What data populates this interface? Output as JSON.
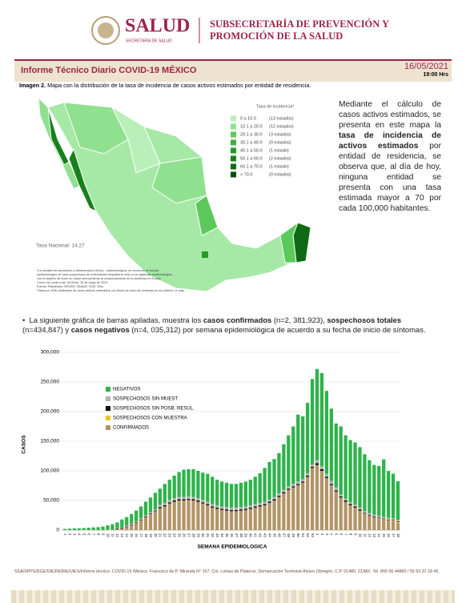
{
  "header": {
    "brand": "SALUD",
    "brand_sub": "SECRETARÍA DE SALUD",
    "title_1": "SUBSECRETARÍA DE PREVENCIÓN Y",
    "title_2": "PROMOCIÓN DE LA SALUD"
  },
  "report": {
    "title": "Informe Técnico Diario COVID-19 MÉXICO",
    "date": "16/05/2021",
    "time": "19:00 Hrs"
  },
  "map": {
    "caption_label": "Imagen 2.",
    "caption": "Mapa con la distribución de la tasa de incidencia de casos activos estimados por entidad de residencia.",
    "legend_title": "Tasa de incidencia*",
    "legend": [
      {
        "range": "0  a  10.0",
        "count": "(13 estados)",
        "color": "#b9f0b9"
      },
      {
        "range": "10.1  a  20.0",
        "count": "(12 estados)",
        "color": "#8fe08f"
      },
      {
        "range": "20.1  a  30.0",
        "count": "(3 estados)",
        "color": "#5cc95c"
      },
      {
        "range": "30.1  a  40.0",
        "count": "(0 estados)",
        "color": "#3fb03f"
      },
      {
        "range": "40.1  a  50.0",
        "count": "(1 estado)",
        "color": "#259a25"
      },
      {
        "range": "50.1  a  60.0",
        "count": "(2 estados)",
        "color": "#17801c"
      },
      {
        "range": "60.1  a  70.0",
        "count": "(1 estado)",
        "color": "#0e6a14"
      },
      {
        "range": "> 70.0",
        "count": "(0 estados)",
        "color": "#064d0b"
      }
    ],
    "national": "Tasa Nacional: 14.27",
    "notes": [
      "*La variable de asociación y dictaminación clínica - epidemiológica, se incorporó al estudio",
      "epidemiológico de caso sospechoso de enfermedad respiratoria viral y a la vigilancia epidemiológica",
      "con el objetivo de tener un mejor acercamiento al comportamiento de la epidemia en el país.",
      "Cierre con corte a las 16:00hrs, 16 de mayo de 2021",
      "Fuente: Plataforma SISVER, SINAVE, DGE, SSa.",
      "*Tasa por 100k habitantes de casos activos estimados; por fecha de inicio de síntomas en los últimos 14 días."
    ],
    "text": [
      "Mediante el cálculo de casos activos estimados, se presenta en este mapa la ",
      "tasa de incidencia de activos estimados",
      " por entidad de residencia, se observa que, al día de hoy, ninguna entidad se presenta con una tasa estimada mayor a 70 por cada 100,000 habitantes."
    ]
  },
  "bullet": [
    "La siguiente gráfica de barras apiladas, muestra los ",
    "casos confirmados",
    " (n=2, 381,923), ",
    "sospechosos totales",
    " (n=434,847) y ",
    "casos negativos",
    " (n=4, 035,312) por semana epidemiológica de acuerdo a su fecha de inicio de síntomas."
  ],
  "chart_data": {
    "type": "bar",
    "stacked": true,
    "ylabel": "CASOS",
    "xlabel": "SEMANA EPIDEMIOLOGICA",
    "ylim": [
      0,
      300000
    ],
    "yticks": [
      0,
      {
        "value": 50000,
        "label": "50,000"
      },
      {
        "value": 100000,
        "label": "100,000"
      },
      {
        "value": 150000,
        "label": "150,000"
      },
      {
        "value": 200000,
        "label": "200,000"
      },
      {
        "value": 250000,
        "label": "250,000"
      },
      {
        "value": 300000,
        "label": "300,000"
      }
    ],
    "grid": true,
    "categories": [
      "1",
      "2",
      "3",
      "4",
      "5",
      "6",
      "7",
      "8",
      "9",
      "10",
      "11",
      "12",
      "13",
      "14",
      "15",
      "16",
      "17",
      "18",
      "19",
      "20",
      "21",
      "22",
      "23",
      "24",
      "25",
      "26",
      "27",
      "28",
      "29",
      "30",
      "31",
      "32",
      "33",
      "34",
      "35",
      "36",
      "37",
      "38",
      "39",
      "40",
      "41",
      "42",
      "43",
      "44",
      "45",
      "46",
      "47",
      "48",
      "49",
      "50",
      "51",
      "52",
      "53",
      "1",
      "2",
      "3",
      "4",
      "5",
      "6",
      "7",
      "8",
      "9",
      "10",
      "11",
      "12",
      "13",
      "14",
      "15",
      "16",
      "17",
      "18"
    ],
    "series": [
      {
        "name": "CONFIRMADOS",
        "color": "#b39466",
        "values": [
          0,
          0,
          0,
          0,
          0,
          0,
          0,
          0,
          0,
          50,
          300,
          1500,
          3000,
          5000,
          8000,
          12000,
          17000,
          22000,
          27000,
          32000,
          37000,
          40000,
          45000,
          48000,
          50000,
          50000,
          51000,
          50000,
          48000,
          45000,
          42000,
          38000,
          36000,
          34000,
          33000,
          32000,
          32000,
          33000,
          34000,
          36000,
          38000,
          40000,
          42000,
          46000,
          50000,
          56000,
          62000,
          68000,
          72000,
          76000,
          80000,
          90000,
          105000,
          110000,
          100000,
          88000,
          76000,
          65000,
          55000,
          48000,
          42000,
          38000,
          33000,
          28000,
          25000,
          22000,
          20000,
          18000,
          16000,
          15000,
          12000
        ]
      },
      {
        "name": "SOSPECHOSOS CON MUESTRA",
        "color": "#f2c318",
        "values": [
          0,
          0,
          0,
          0,
          0,
          0,
          0,
          0,
          0,
          0,
          0,
          0,
          0,
          0,
          0,
          0,
          0,
          0,
          0,
          0,
          0,
          0,
          0,
          0,
          0,
          0,
          0,
          0,
          0,
          0,
          0,
          0,
          0,
          0,
          0,
          0,
          0,
          0,
          0,
          0,
          0,
          0,
          0,
          0,
          0,
          0,
          0,
          0,
          0,
          0,
          0,
          0,
          0,
          0,
          0,
          0,
          0,
          0,
          0,
          0,
          0,
          0,
          0,
          0,
          0,
          0,
          300,
          500,
          800,
          1200,
          1500
        ]
      },
      {
        "name": "SOSPECHOSOS SIN POSB. RESUL.",
        "color": "#111111",
        "values": [
          0,
          0,
          0,
          0,
          0,
          0,
          0,
          0,
          0,
          0,
          0,
          1000,
          1000,
          1000,
          1000,
          1000,
          1000,
          1000,
          1000,
          1000,
          2000,
          2000,
          2000,
          2000,
          2000,
          2000,
          2000,
          2000,
          2000,
          2000,
          2000,
          2000,
          2000,
          2000,
          2000,
          2000,
          2000,
          2000,
          2000,
          2000,
          2000,
          2000,
          2000,
          2000,
          2000,
          2000,
          2000,
          2000,
          2000,
          2000,
          2000,
          2000,
          2000,
          3000,
          3000,
          2000,
          2000,
          2000,
          2000,
          2000,
          2000,
          2000,
          2000,
          1000,
          1000,
          1000,
          1000,
          1000,
          1000,
          1000,
          1000
        ]
      },
      {
        "name": "SOSPECHOSOS SIN MUEST",
        "color": "#b0b0b0",
        "values": [
          0,
          0,
          0,
          0,
          0,
          0,
          0,
          0,
          0,
          500,
          500,
          500,
          500,
          2000,
          2000,
          2000,
          2000,
          2000,
          2000,
          2000,
          4000,
          4000,
          4000,
          4000,
          4000,
          4000,
          4000,
          4000,
          4000,
          4000,
          4000,
          4000,
          4000,
          4000,
          4000,
          4000,
          4000,
          4000,
          4000,
          4000,
          4000,
          4000,
          4000,
          4000,
          4000,
          4000,
          4000,
          4000,
          4000,
          4000,
          4000,
          4000,
          4000,
          5000,
          5000,
          5000,
          5000,
          5000,
          3000,
          3000,
          3000,
          3000,
          3000,
          3000,
          3000,
          3000,
          3000,
          3000,
          3000,
          3000,
          3000
        ]
      },
      {
        "name": "NEGATIVOS",
        "color": "#2db34a",
        "values": [
          2000,
          2500,
          3000,
          3000,
          3500,
          4000,
          4500,
          5000,
          6000,
          7450,
          9200,
          10000,
          13500,
          14000,
          16000,
          18000,
          20000,
          23000,
          25000,
          28000,
          27000,
          32000,
          34000,
          38000,
          42000,
          46000,
          46000,
          47000,
          46000,
          46000,
          47000,
          46000,
          43000,
          42000,
          41000,
          40000,
          40000,
          41000,
          42000,
          43000,
          46000,
          50000,
          57000,
          63000,
          64000,
          68000,
          77000,
          86000,
          97000,
          113000,
          106000,
          119000,
          144000,
          154000,
          157000,
          140000,
          122000,
          108000,
          115000,
          107000,
          105000,
          105000,
          102000,
          96000,
          89000,
          84000,
          84000,
          97000,
          79000,
          75000,
          65000
        ]
      }
    ],
    "legend_order": [
      4,
      3,
      2,
      1,
      0
    ]
  },
  "footer": "SSA/SPPS/DGE/DIE/INDRE/UIES/Informe técnico. COVID-19 /México. Francisco de P. Miranda N° 157, Col. Lomas de Plateros, Demarcación Territorial Álvaro Obregón, C.P. 01480. CDMX. Tel. 800 00 44800 / 55 53 37 18 45."
}
